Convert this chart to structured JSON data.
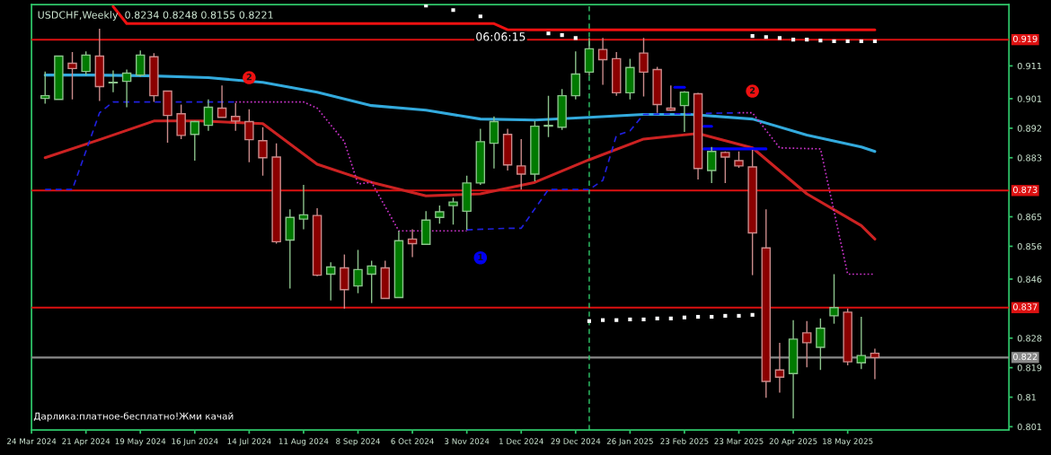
{
  "chart_data": {
    "type": "candlestick",
    "title": "USDCHF,Weekly  0.8234 0.8248 0.8155 0.8221",
    "x": [
      "2024-03-31",
      "2024-04-07",
      "2024-04-14",
      "2024-04-21",
      "2024-04-28",
      "2024-05-05",
      "2024-05-12",
      "2024-05-19",
      "2024-05-26",
      "2024-06-02",
      "2024-06-09",
      "2024-06-16",
      "2024-06-23",
      "2024-06-30",
      "2024-07-07",
      "2024-07-14",
      "2024-07-21",
      "2024-07-28",
      "2024-08-04",
      "2024-08-11",
      "2024-08-18",
      "2024-08-25",
      "2024-09-01",
      "2024-09-08",
      "2024-09-15",
      "2024-09-22",
      "2024-09-29",
      "2024-10-06",
      "2024-10-13",
      "2024-10-20",
      "2024-10-27",
      "2024-11-03",
      "2024-11-10",
      "2024-11-17",
      "2024-11-24",
      "2024-12-01",
      "2024-12-08",
      "2024-12-15",
      "2024-12-22",
      "2024-12-29",
      "2025-01-05",
      "2025-01-12",
      "2025-01-19",
      "2025-01-26",
      "2025-02-02",
      "2025-02-09",
      "2025-02-16",
      "2025-02-23",
      "2025-03-02",
      "2025-03-09",
      "2025-03-16",
      "2025-03-23",
      "2025-03-30",
      "2025-04-06",
      "2025-04-13",
      "2025-04-20",
      "2025-04-27",
      "2025-05-04",
      "2025-05-11",
      "2025-05-18",
      "2025-05-25",
      "2025-06-01"
    ],
    "ohlc": [
      [
        0.9011,
        0.9093,
        0.8995,
        0.9019
      ],
      [
        0.9008,
        0.914,
        0.9008,
        0.914
      ],
      [
        0.9118,
        0.9152,
        0.9008,
        0.9102
      ],
      [
        0.9093,
        0.9154,
        0.9082,
        0.9143
      ],
      [
        0.914,
        0.9223,
        0.9003,
        0.9047
      ],
      [
        0.9058,
        0.9096,
        0.903,
        0.906
      ],
      [
        0.9063,
        0.9099,
        0.8984,
        0.9088
      ],
      [
        0.9082,
        0.9157,
        0.9077,
        0.9143
      ],
      [
        0.9138,
        0.9149,
        0.9,
        0.9019
      ],
      [
        0.9033,
        0.9033,
        0.8876,
        0.8959
      ],
      [
        0.8964,
        0.8992,
        0.8887,
        0.8898
      ],
      [
        0.8901,
        0.8942,
        0.8821,
        0.894
      ],
      [
        0.8929,
        0.9008,
        0.8912,
        0.8984
      ],
      [
        0.8981,
        0.905,
        0.8953,
        0.8953
      ],
      [
        0.8956,
        0.8997,
        0.8912,
        0.8942
      ],
      [
        0.894,
        0.8978,
        0.8816,
        0.8885
      ],
      [
        0.8882,
        0.8923,
        0.8775,
        0.883
      ],
      [
        0.8832,
        0.8874,
        0.8568,
        0.8574
      ],
      [
        0.8579,
        0.8673,
        0.8431,
        0.8648
      ],
      [
        0.8643,
        0.8747,
        0.8612,
        0.8656
      ],
      [
        0.8654,
        0.8676,
        0.8469,
        0.8472
      ],
      [
        0.8475,
        0.8511,
        0.8395,
        0.8497
      ],
      [
        0.8494,
        0.8535,
        0.837,
        0.8428
      ],
      [
        0.8439,
        0.8549,
        0.8417,
        0.8489
      ],
      [
        0.8475,
        0.8516,
        0.8387,
        0.85
      ],
      [
        0.8494,
        0.8516,
        0.8401,
        0.8401
      ],
      [
        0.8404,
        0.8607,
        0.8404,
        0.8577
      ],
      [
        0.8582,
        0.8612,
        0.8527,
        0.8568
      ],
      [
        0.8566,
        0.8667,
        0.8566,
        0.864
      ],
      [
        0.8648,
        0.8684,
        0.8629,
        0.8665
      ],
      [
        0.8684,
        0.8708,
        0.8626,
        0.8695
      ],
      [
        0.8667,
        0.8775,
        0.861,
        0.8753
      ],
      [
        0.8753,
        0.8918,
        0.8747,
        0.8879
      ],
      [
        0.8874,
        0.8956,
        0.8797,
        0.894
      ],
      [
        0.8901,
        0.8918,
        0.8791,
        0.8808
      ],
      [
        0.8805,
        0.8887,
        0.8733,
        0.878
      ],
      [
        0.878,
        0.8942,
        0.8758,
        0.8926
      ],
      [
        0.8926,
        0.9019,
        0.8893,
        0.8929
      ],
      [
        0.8923,
        0.9039,
        0.8915,
        0.9019
      ],
      [
        0.9019,
        0.9154,
        0.9008,
        0.9085
      ],
      [
        0.9091,
        0.9195,
        0.908,
        0.9162
      ],
      [
        0.916,
        0.9195,
        0.9052,
        0.9129
      ],
      [
        0.9132,
        0.9152,
        0.9019,
        0.9028
      ],
      [
        0.9028,
        0.9132,
        0.9008,
        0.9105
      ],
      [
        0.9149,
        0.9195,
        0.9017,
        0.9091
      ],
      [
        0.9099,
        0.9107,
        0.8967,
        0.8992
      ],
      [
        0.8981,
        0.905,
        0.8973,
        0.8975
      ],
      [
        0.8989,
        0.9033,
        0.8909,
        0.903
      ],
      [
        0.9025,
        0.9028,
        0.8764,
        0.8797
      ],
      [
        0.8791,
        0.8863,
        0.8753,
        0.8849
      ],
      [
        0.8846,
        0.8849,
        0.8753,
        0.8832
      ],
      [
        0.8821,
        0.8849,
        0.8799,
        0.8805
      ],
      [
        0.8802,
        0.8854,
        0.8472,
        0.8601
      ],
      [
        0.8555,
        0.8673,
        0.8098,
        0.8148
      ],
      [
        0.8183,
        0.8266,
        0.8114,
        0.8161
      ],
      [
        0.8172,
        0.8335,
        0.8035,
        0.8277
      ],
      [
        0.8296,
        0.8332,
        0.8191,
        0.8266
      ],
      [
        0.8252,
        0.834,
        0.8183,
        0.831
      ],
      [
        0.8348,
        0.8475,
        0.8324,
        0.8373
      ],
      [
        0.8359,
        0.837,
        0.8197,
        0.8208
      ],
      [
        0.8205,
        0.8345,
        0.8186,
        0.8227
      ],
      [
        0.8234,
        0.8248,
        0.8155,
        0.8221
      ]
    ],
    "colors": [
      "#007a00",
      "#007a00",
      "#8b0000",
      "#007a00",
      "#8b0000",
      "#007a00",
      "#007a00",
      "#007a00",
      "#8b0000",
      "#8b0000",
      "#8b0000",
      "#007a00",
      "#007a00",
      "#8b0000",
      "#8b0000",
      "#8b0000",
      "#8b0000",
      "#8b0000",
      "#007a00",
      "#007a00",
      "#8b0000",
      "#007a00",
      "#8b0000",
      "#007a00",
      "#007a00",
      "#8b0000",
      "#007a00",
      "#8b0000",
      "#007a00",
      "#007a00",
      "#007a00",
      "#007a00",
      "#007a00",
      "#007a00",
      "#8b0000",
      "#8b0000",
      "#007a00",
      "#007a00",
      "#007a00",
      "#007a00",
      "#007a00",
      "#8b0000",
      "#8b0000",
      "#007a00",
      "#8b0000",
      "#8b0000",
      "#8b0000",
      "#007a00",
      "#8b0000",
      "#007a00",
      "#8b0000",
      "#8b0000",
      "#8b0000",
      "#8b0000",
      "#8b0000",
      "#007a00",
      "#8b0000",
      "#007a00",
      "#007a00",
      "#8b0000",
      "#007a00",
      "#8b0000"
    ],
    "series": [
      {
        "type": "line",
        "color": "#33aadd",
        "line_style": "solid",
        "x": [
          "2024-03-31",
          "2024-04-24",
          "2024-05-22",
          "2024-06-23",
          "2024-07-21",
          "2024-08-18",
          "2024-09-15",
          "2024-10-13",
          "2024-11-10",
          "2024-12-08",
          "2025-01-05",
          "2025-02-02",
          "2025-02-26",
          "2025-03-30",
          "2025-04-27",
          "2025-05-25",
          "2025-06-01"
        ],
        "values": [
          0.9082,
          0.9082,
          0.908,
          0.9074,
          0.906,
          0.903,
          0.8989,
          0.8975,
          0.8948,
          0.8945,
          0.8953,
          0.8962,
          0.8962,
          0.8948,
          0.8899,
          0.8863,
          0.8849
        ]
      },
      {
        "type": "line",
        "color": "#cc2222",
        "line_style": "solid",
        "x": [
          "2024-03-31",
          "2024-04-28",
          "2024-05-26",
          "2024-06-19",
          "2024-07-21",
          "2024-08-18",
          "2024-09-15",
          "2024-10-13",
          "2024-11-10",
          "2024-12-08",
          "2025-01-05",
          "2025-02-02",
          "2025-03-02",
          "2025-03-30",
          "2025-04-27",
          "2025-05-25",
          "2025-06-01"
        ],
        "values": [
          0.883,
          0.8885,
          0.8942,
          0.8942,
          0.8934,
          0.881,
          0.8755,
          0.8714,
          0.872,
          0.8755,
          0.8824,
          0.8887,
          0.8904,
          0.886,
          0.872,
          0.8623,
          0.8582
        ]
      },
      {
        "type": "line",
        "color": "#2020dd",
        "line_style": "dashed",
        "x": [
          "2024-03-31",
          "2024-04-14",
          "2024-04-28",
          "2024-05-05",
          "2024-07-07"
        ],
        "values": [
          0.8733,
          0.8733,
          0.8967,
          0.9,
          0.9
        ]
      },
      {
        "type": "line",
        "color": "#2020dd",
        "line_style": "dashed",
        "x": [
          "2024-11-03",
          "2024-11-24",
          "2024-12-01",
          "2024-12-15",
          "2025-01-05",
          "2025-01-12",
          "2025-01-19",
          "2025-01-26",
          "2025-02-02",
          "2025-03-23"
        ],
        "values": [
          0.861,
          0.8615,
          0.8615,
          0.8733,
          0.8733,
          0.8761,
          0.8898,
          0.8912,
          0.8962,
          0.8967
        ]
      },
      {
        "type": "line",
        "color": "#cc33cc",
        "line_style": "dotted",
        "x": [
          "2024-07-07",
          "2024-08-11",
          "2024-08-18",
          "2024-09-01",
          "2024-09-08",
          "2024-09-15",
          "2024-09-29",
          "2024-11-03"
        ],
        "values": [
          0.9,
          0.9,
          0.8981,
          0.8879,
          0.875,
          0.8755,
          0.8607,
          0.8607
        ]
      },
      {
        "type": "line",
        "color": "#cc33cc",
        "line_style": "dotted",
        "x": [
          "2025-03-23",
          "2025-03-30",
          "2025-04-13",
          "2025-05-04",
          "2025-05-18",
          "2025-06-01"
        ],
        "values": [
          0.8967,
          0.8967,
          0.886,
          0.8857,
          0.8475,
          0.8475
        ]
      },
      {
        "type": "line",
        "color": "#ee1111",
        "line_style": "solid",
        "x": [
          "2024-05-05",
          "2024-05-12",
          "2024-11-17",
          "2024-11-24",
          "2025-06-01"
        ],
        "values": [
          0.9291,
          0.9239,
          0.9239,
          0.922,
          0.922
        ]
      },
      {
        "type": "line",
        "color": "#0000ff",
        "line_style": "solid",
        "x": [
          "2025-02-18",
          "2025-02-23"
        ],
        "values": [
          0.9045,
          0.9045
        ]
      },
      {
        "type": "line",
        "color": "#0000ff",
        "line_style": "solid",
        "x": [
          "2025-03-05",
          "2025-03-09"
        ],
        "values": [
          0.8926,
          0.8926
        ]
      },
      {
        "type": "line",
        "color": "#0000ff",
        "line_style": "solid",
        "x": [
          "2025-03-05",
          "2025-04-06"
        ],
        "values": [
          0.8857,
          0.8857
        ]
      },
      {
        "type": "scatter",
        "color": "#ffffff",
        "marker": "square",
        "x": [
          "2024-10-13",
          "2024-10-27",
          "2024-11-10",
          "2024-12-15",
          "2024-12-22",
          "2024-12-29",
          "2025-03-30",
          "2025-04-06",
          "2025-04-13",
          "2025-04-20",
          "2025-04-27",
          "2025-05-04",
          "2025-05-11",
          "2025-05-18",
          "2025-05-25",
          "2025-06-01"
        ],
        "values": [
          0.9294,
          0.928,
          0.9261,
          0.9209,
          0.9204,
          0.9195,
          0.9201,
          0.9198,
          0.9195,
          0.919,
          0.919,
          0.9187,
          0.9185,
          0.9185,
          0.9185,
          0.9185
        ]
      },
      {
        "type": "scatter",
        "color": "#ffffff",
        "marker": "square",
        "x": [
          "2025-01-05",
          "2025-01-12",
          "2025-01-19",
          "2025-01-26",
          "2025-02-02",
          "2025-02-09",
          "2025-02-16",
          "2025-02-23",
          "2025-03-02",
          "2025-03-09",
          "2025-03-16",
          "2025-03-23",
          "2025-03-30"
        ],
        "values": [
          0.8332,
          0.8335,
          0.8335,
          0.8337,
          0.8337,
          0.834,
          0.834,
          0.8343,
          0.8345,
          0.8345,
          0.8348,
          0.8348,
          0.8351
        ]
      },
      {
        "type": "scatter",
        "color": "#ee1111",
        "marker": "circle",
        "x": [
          "2024-07-14",
          "2025-03-30"
        ],
        "values": [
          0.9074,
          0.9033
        ]
      },
      {
        "type": "scatter",
        "color": "#0000ee",
        "marker": "circle",
        "x": [
          "2024-11-10"
        ],
        "values": [
          0.8525
        ]
      }
    ],
    "annotations": [
      "06:06:15",
      "Дарлика:платное-бесплатно!Жми качай",
      {
        "text": "2",
        "x": "2024-07-14",
        "y": 0.9074
      },
      {
        "text": "2",
        "x": "2025-03-30",
        "y": 0.9033
      },
      {
        "text": "1",
        "x": "2024-11-10",
        "y": 0.8525
      }
    ],
    "ref_lines": [
      {
        "axis": "y",
        "value": 0.919,
        "label": "0.919",
        "color": "#dd1111",
        "line_style": "solid"
      },
      {
        "axis": "y",
        "value": 0.873,
        "label": "0.873",
        "color": "#dd1111",
        "line_style": "solid"
      },
      {
        "axis": "y",
        "value": 0.8373,
        "label": "0.837",
        "color": "#dd1111",
        "line_style": "solid"
      },
      {
        "axis": "y",
        "value": 0.8221,
        "label": "0.822",
        "color": "#8a8a8a",
        "line_style": "solid"
      },
      {
        "axis": "x",
        "value": "2025-01-05",
        "color": "#2fc86a",
        "line_style": "dashed"
      }
    ],
    "xlim": [
      "2024-03-24",
      "2025-08-09"
    ],
    "xticks": [
      {
        "value": "2024-03-24",
        "label": "24 Mar 2024"
      },
      {
        "value": "2024-04-21",
        "label": "21 Apr 2024"
      },
      {
        "value": "2024-05-19",
        "label": "19 May 2024"
      },
      {
        "value": "2024-06-16",
        "label": "16 Jun 2024"
      },
      {
        "value": "2024-07-14",
        "label": "14 Jul 2024"
      },
      {
        "value": "2024-08-11",
        "label": "11 Aug 2024"
      },
      {
        "value": "2024-09-08",
        "label": "8 Sep 2024"
      },
      {
        "value": "2024-10-06",
        "label": "6 Oct 2024"
      },
      {
        "value": "2024-11-03",
        "label": "3 Nov 2024"
      },
      {
        "value": "2024-12-01",
        "label": "1 Dec 2024"
      },
      {
        "value": "2024-12-29",
        "label": "29 Dec 2024"
      },
      {
        "value": "2025-01-26",
        "label": "26 Jan 2025"
      },
      {
        "value": "2025-02-23",
        "label": "23 Feb 2025"
      },
      {
        "value": "2025-03-23",
        "label": "23 Mar 2025"
      },
      {
        "value": "2025-04-20",
        "label": "20 Apr 2025"
      },
      {
        "value": "2025-05-18",
        "label": "18 May 2025"
      }
    ],
    "ylim": [
      0.8,
      0.9297
    ],
    "yticks": [
      0.801,
      0.81,
      0.819,
      0.828,
      0.846,
      0.856,
      0.865,
      0.883,
      0.892,
      0.901,
      0.911
    ],
    "grid": false
  }
}
